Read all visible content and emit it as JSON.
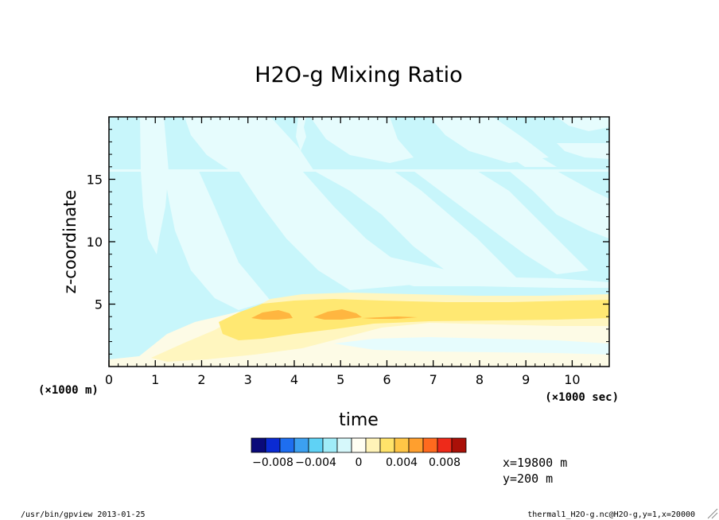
{
  "chart_data": {
    "type": "heatmap",
    "title": "H2O-g Mixing Ratio",
    "xlabel": "time",
    "ylabel": "z-coordinate",
    "x_unit_label": "(×1000 sec)",
    "y_unit_label": "(×1000 m)",
    "x_ticks": [
      "0",
      "1",
      "2",
      "3",
      "4",
      "5",
      "6",
      "7",
      "8",
      "9",
      "10"
    ],
    "y_ticks": [
      "5",
      "10",
      "15"
    ],
    "xlim": [
      0,
      10.8
    ],
    "ylim": [
      0,
      20
    ],
    "grid": false,
    "colorbar": {
      "tick_labels": [
        "−0.008",
        "−0.004",
        "0",
        "0.004",
        "0.008"
      ],
      "tick_values": [
        -0.008,
        -0.004,
        0,
        0.004,
        0.008
      ],
      "levels": [
        -0.01,
        -0.009,
        -0.008,
        -0.007,
        -0.006,
        -0.005,
        -0.004,
        -0.003,
        -0.002,
        -0.001,
        0,
        0.001,
        0.002,
        0.003,
        0.004,
        0.005,
        0.006,
        0.007,
        0.008,
        0.009,
        0.01
      ],
      "colors": [
        "#0a0a7a",
        "#0a2ad2",
        "#1e6ef0",
        "#3ca0f0",
        "#5fd2f5",
        "#a0ecf8",
        "#d6f8fb",
        "#fffef2",
        "#fff3b8",
        "#ffe36a",
        "#ffc646",
        "#ff9f2e",
        "#ff6a1e",
        "#ee2a1a",
        "#aa1008"
      ]
    },
    "field_colors": {
      "light_cyan": "#c8f6fb",
      "pale_cyan": "#e6fcfd",
      "cream": "#fdfbe6",
      "pale_yellow": "#fff6bf",
      "yellow": "#ffe872",
      "orange": "#ffb640"
    },
    "annotations": [
      "x=19800 m",
      "y=200 m"
    ]
  },
  "footer": {
    "left": "/usr/bin/gpview  2013-01-25",
    "right": "thermal1_H2O-g.nc@H2O-g,y=1,x=20000"
  }
}
